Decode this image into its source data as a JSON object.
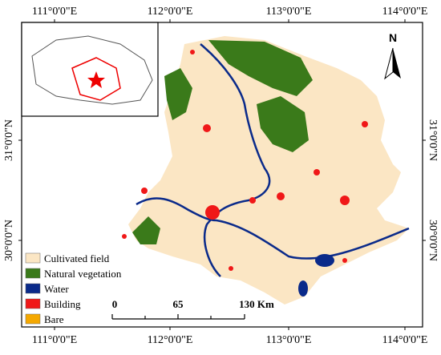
{
  "map": {
    "longitude_labels_top": [
      "111°0'0\"E",
      "112°0'0\"E",
      "113°0'0\"E",
      "114°0'0\"E"
    ],
    "longitude_labels_bottom": [
      "111°0'0\"E",
      "112°0'0\"E",
      "113°0'0\"E",
      "114°0'0\"E"
    ],
    "latitude_labels_left": [
      "31°0'0\"N",
      "30°0'0\"N"
    ],
    "latitude_labels_right": [
      "31°0'0\"N",
      "30°0'0\"N"
    ],
    "north": "N",
    "legend": [
      {
        "label": "Cultivated field",
        "color": "#fbe6c4"
      },
      {
        "label": "Natural vegetation",
        "color": "#3a7a1a"
      },
      {
        "label": "Water",
        "color": "#0a2a8a"
      },
      {
        "label": "Building",
        "color": "#f01818"
      },
      {
        "label": "Bare",
        "color": "#f5a800"
      }
    ],
    "scale_bar": {
      "labels": [
        "0",
        "65",
        "130 Km"
      ]
    }
  }
}
